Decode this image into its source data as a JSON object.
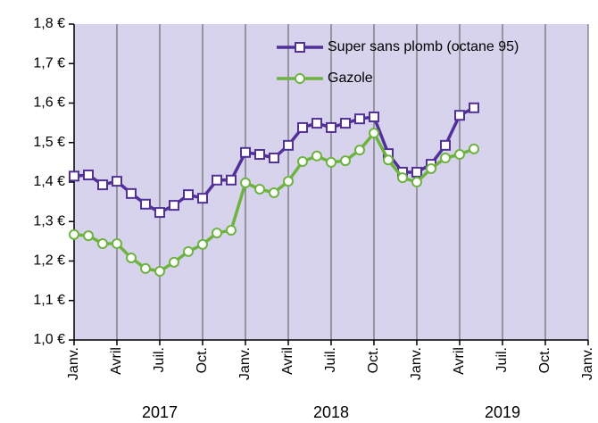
{
  "chart_data": {
    "type": "line",
    "x": [
      0,
      1,
      2,
      3,
      4,
      5,
      6,
      7,
      8,
      9,
      10,
      11,
      12,
      13,
      14,
      15,
      16,
      17,
      18,
      19,
      20,
      21,
      22,
      23,
      24,
      25,
      26,
      27,
      28
    ],
    "xlim": [
      0,
      36
    ],
    "xticks": [
      {
        "value": 0,
        "label": "Janv."
      },
      {
        "value": 3,
        "label": "Avril"
      },
      {
        "value": 6,
        "label": "Juil."
      },
      {
        "value": 9,
        "label": "Oct."
      },
      {
        "value": 12,
        "label": "Janv."
      },
      {
        "value": 15,
        "label": "Avril"
      },
      {
        "value": 18,
        "label": "Juil."
      },
      {
        "value": 21,
        "label": "Oct."
      },
      {
        "value": 24,
        "label": "Janv."
      },
      {
        "value": 27,
        "label": "Avril"
      },
      {
        "value": 30,
        "label": "Juil."
      },
      {
        "value": 33,
        "label": "Oct."
      },
      {
        "value": 36,
        "label": "Janv."
      }
    ],
    "year_labels": [
      "2017",
      "2018",
      "2019"
    ],
    "ylim": [
      1.0,
      1.8
    ],
    "yticks": [
      {
        "value": 1.0,
        "label": "1,0 €"
      },
      {
        "value": 1.1,
        "label": "1,1 €"
      },
      {
        "value": 1.2,
        "label": "1,2 €"
      },
      {
        "value": 1.3,
        "label": "1,3 €"
      },
      {
        "value": 1.4,
        "label": "1,4 €"
      },
      {
        "value": 1.5,
        "label": "1,5 €"
      },
      {
        "value": 1.6,
        "label": "1,6 €"
      },
      {
        "value": 1.7,
        "label": "1,7 €"
      },
      {
        "value": 1.8,
        "label": "1,8 €"
      }
    ],
    "grid": true,
    "legend": "upper right",
    "series": [
      {
        "name": "Super sans plomb (octane 95)",
        "color": "#51309a",
        "marker": "square",
        "values": [
          1.415,
          1.418,
          1.393,
          1.402,
          1.371,
          1.344,
          1.323,
          1.341,
          1.368,
          1.359,
          1.405,
          1.405,
          1.475,
          1.47,
          1.461,
          1.493,
          1.538,
          1.549,
          1.538,
          1.549,
          1.56,
          1.565,
          1.472,
          1.425,
          1.425,
          1.445,
          1.493,
          1.569,
          1.588
        ]
      },
      {
        "name": "Gazole",
        "color": "#6db33f",
        "marker": "circle",
        "values": [
          1.267,
          1.264,
          1.244,
          1.244,
          1.208,
          1.181,
          1.174,
          1.197,
          1.224,
          1.242,
          1.271,
          1.278,
          1.398,
          1.382,
          1.373,
          1.402,
          1.452,
          1.466,
          1.45,
          1.454,
          1.481,
          1.524,
          1.456,
          1.411,
          1.4,
          1.434,
          1.461,
          1.47,
          1.484
        ]
      }
    ]
  }
}
